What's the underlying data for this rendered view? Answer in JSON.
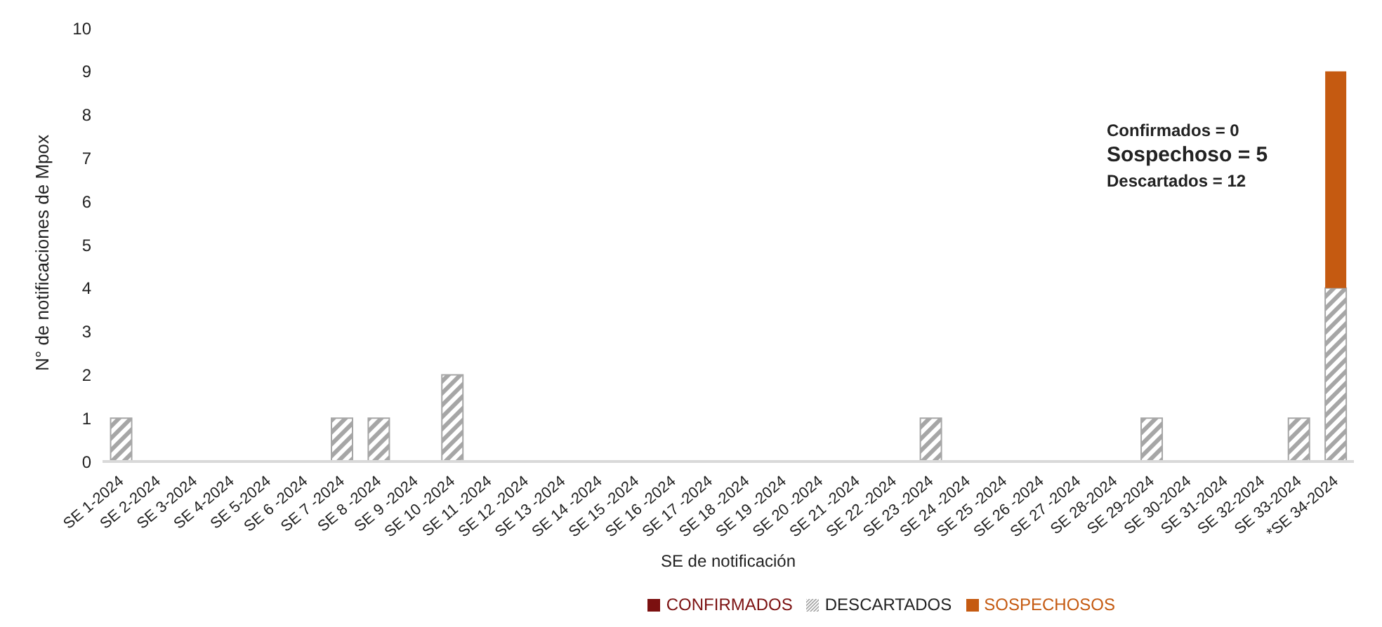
{
  "chart_data": {
    "type": "bar",
    "stacked": true,
    "xlabel": "SE de notificación",
    "ylabel": "N° de notificaciones de Mpox",
    "categories": [
      "SE 1-2024",
      "SE 2-2024",
      "SE 3-2024",
      "SE 4-2024",
      "SE 5-2024",
      "SE 6 -2024",
      "SE 7 -2024",
      "SE 8 -2024",
      "SE 9 -2024",
      "SE 10 -2024",
      "SE 11 -2024",
      "SE 12 -2024",
      "SE 13 -2024",
      "SE 14 -2024",
      "SE 15 -2024",
      "SE 16 -2024",
      "SE 17 -2024",
      "SE 18 -2024",
      "SE 19 -2024",
      "SE 20 -2024",
      "SE 21 -2024",
      "SE 22 -2024",
      "SE 23 -2024",
      "SE 24 -2024",
      "SE 25 -2024",
      "SE 26 -2024",
      "SE 27 -2024",
      "SE 28-2024",
      "SE 29-2024",
      "SE 30-2024",
      "SE 31-2024",
      "SE 32-2024",
      "SE 33-2024",
      "*SE 34-2024"
    ],
    "series": [
      {
        "name": "CONFIRMADOS",
        "color": "#7b1010",
        "values": [
          0,
          0,
          0,
          0,
          0,
          0,
          0,
          0,
          0,
          0,
          0,
          0,
          0,
          0,
          0,
          0,
          0,
          0,
          0,
          0,
          0,
          0,
          0,
          0,
          0,
          0,
          0,
          0,
          0,
          0,
          0,
          0,
          0,
          0
        ]
      },
      {
        "name": "DESCARTADOS",
        "color": "#a6a6a6",
        "values": [
          1,
          0,
          0,
          0,
          0,
          0,
          1,
          1,
          0,
          2,
          0,
          0,
          0,
          0,
          0,
          0,
          0,
          0,
          0,
          0,
          0,
          0,
          1,
          0,
          0,
          0,
          0,
          0,
          1,
          0,
          0,
          0,
          1,
          4
        ]
      },
      {
        "name": "SOSPECHOSOS",
        "color": "#c55a11",
        "values": [
          0,
          0,
          0,
          0,
          0,
          0,
          0,
          0,
          0,
          0,
          0,
          0,
          0,
          0,
          0,
          0,
          0,
          0,
          0,
          0,
          0,
          0,
          0,
          0,
          0,
          0,
          0,
          0,
          0,
          0,
          0,
          0,
          0,
          5
        ]
      }
    ],
    "ylim": [
      0,
      10
    ],
    "yticks": [
      0,
      1,
      2,
      3,
      4,
      5,
      6,
      7,
      8,
      9,
      10
    ],
    "grid": false,
    "legend": "bottom",
    "annotations": [
      "Confirmados = 0",
      "Sospechoso = 5",
      "Descartados = 12"
    ]
  }
}
